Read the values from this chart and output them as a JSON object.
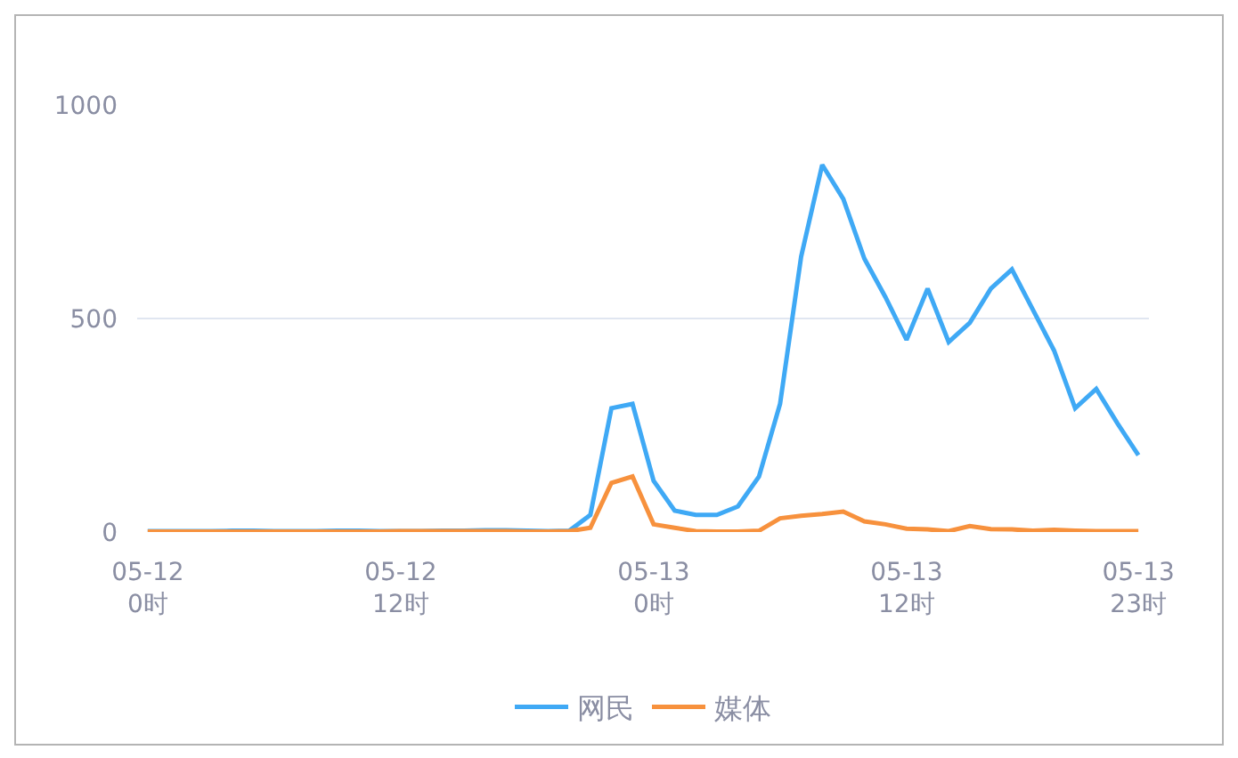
{
  "chart_data": {
    "type": "line",
    "categories": [
      "05-12\n0时",
      null,
      null,
      null,
      null,
      null,
      null,
      null,
      null,
      null,
      null,
      null,
      "05-12\n12时",
      null,
      null,
      null,
      null,
      null,
      null,
      null,
      null,
      null,
      null,
      null,
      "05-13\n0时",
      null,
      null,
      null,
      null,
      null,
      null,
      null,
      null,
      null,
      null,
      null,
      "05-13\n12时",
      null,
      null,
      null,
      null,
      null,
      null,
      null,
      null,
      null,
      null,
      "05-13\n23时"
    ],
    "series": [
      {
        "name": "网民",
        "color": "#3fa9f5",
        "values": [
          2,
          2,
          2,
          2,
          3,
          3,
          2,
          2,
          2,
          3,
          3,
          2,
          2,
          2,
          3,
          3,
          4,
          4,
          3,
          2,
          3,
          40,
          290,
          300,
          120,
          50,
          40,
          40,
          60,
          130,
          300,
          645,
          860,
          780,
          640,
          550,
          450,
          570,
          445,
          490,
          570,
          615,
          520,
          425,
          290,
          335,
          255,
          180
        ]
      },
      {
        "name": "媒体",
        "color": "#f7913d",
        "values": [
          1,
          1,
          1,
          1,
          1,
          1,
          1,
          1,
          1,
          1,
          1,
          1,
          2,
          2,
          2,
          2,
          2,
          2,
          1,
          1,
          2,
          10,
          115,
          130,
          18,
          10,
          2,
          1,
          1,
          3,
          32,
          38,
          42,
          48,
          25,
          18,
          8,
          6,
          2,
          14,
          7,
          6,
          3,
          5,
          3,
          2,
          2,
          2
        ]
      }
    ],
    "ylim": [
      0,
      1000
    ],
    "yticks": [
      0,
      500,
      1000
    ],
    "grid": "y",
    "legend": "bottom",
    "marker": "none",
    "line_style": "solid"
  }
}
